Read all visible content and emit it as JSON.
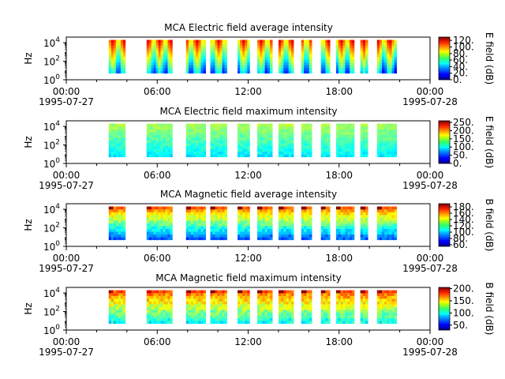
{
  "chart_data": [
    {
      "type": "heatmap",
      "title": "MCA  Electric field average intensity",
      "ylabel": "Hz",
      "y_scale": "log",
      "ylim": [
        1,
        40000
      ],
      "y_ticks": [
        {
          "exp": "0",
          "v": 1
        },
        {
          "exp": "2",
          "v": 100
        },
        {
          "exp": "4",
          "v": 10000
        }
      ],
      "xlim": [
        "1995-07-27 00:00",
        "1995-07-28 00:00"
      ],
      "x_ticks": [
        {
          "time": "00:00",
          "date": "1995-07-27"
        },
        {
          "time": "06:00",
          "date": ""
        },
        {
          "time": "12:00",
          "date": ""
        },
        {
          "time": "18:00",
          "date": ""
        },
        {
          "time": "00:00",
          "date": "1995-07-28"
        }
      ],
      "colorbar": {
        "label": "E field (dB)",
        "range": [
          0,
          130
        ],
        "ticks": [
          "0.",
          "20.",
          "40.",
          "60.",
          "80.",
          "100.",
          "120."
        ],
        "tick_values": [
          0,
          20,
          40,
          60,
          80,
          100,
          120
        ]
      },
      "data_intervals_hours": [
        [
          2.8,
          3.9
        ],
        [
          5.3,
          7.0
        ],
        [
          7.9,
          9.2
        ],
        [
          9.5,
          10.6
        ],
        [
          11.3,
          12.1
        ],
        [
          12.6,
          13.6
        ],
        [
          14.0,
          15.0
        ],
        [
          15.5,
          16.2
        ],
        [
          16.8,
          17.4
        ],
        [
          17.8,
          19.0
        ],
        [
          19.4,
          19.9
        ],
        [
          20.5,
          21.8
        ]
      ],
      "freq_range_hz": [
        5,
        20000
      ]
    },
    {
      "type": "heatmap",
      "title": "MCA  Electric field maximum intensity",
      "ylabel": "Hz",
      "y_scale": "log",
      "ylim": [
        1,
        40000
      ],
      "y_ticks": [
        {
          "exp": "0",
          "v": 1
        },
        {
          "exp": "2",
          "v": 100
        },
        {
          "exp": "4",
          "v": 10000
        }
      ],
      "xlim": [
        "1995-07-27 00:00",
        "1995-07-28 00:00"
      ],
      "x_ticks": [
        {
          "time": "00:00",
          "date": "1995-07-27"
        },
        {
          "time": "06:00",
          "date": ""
        },
        {
          "time": "12:00",
          "date": ""
        },
        {
          "time": "18:00",
          "date": ""
        },
        {
          "time": "00:00",
          "date": "1995-07-28"
        }
      ],
      "colorbar": {
        "label": "E field (dB)",
        "range": [
          0,
          260
        ],
        "ticks": [
          "0.",
          "50.",
          "100.",
          "150.",
          "200.",
          "250."
        ],
        "tick_values": [
          0,
          50,
          100,
          150,
          200,
          250
        ]
      },
      "data_intervals_hours": [
        [
          2.8,
          3.9
        ],
        [
          5.3,
          7.0
        ],
        [
          7.9,
          9.2
        ],
        [
          9.5,
          10.6
        ],
        [
          11.3,
          12.1
        ],
        [
          12.6,
          13.6
        ],
        [
          14.0,
          15.0
        ],
        [
          15.5,
          16.2
        ],
        [
          16.8,
          17.4
        ],
        [
          17.8,
          19.0
        ],
        [
          19.4,
          19.9
        ],
        [
          20.5,
          21.8
        ]
      ],
      "freq_range_hz": [
        5,
        20000
      ]
    },
    {
      "type": "heatmap",
      "title": "MCA  Magnetic field average intensity",
      "ylabel": "Hz",
      "y_scale": "log",
      "ylim": [
        1,
        40000
      ],
      "y_ticks": [
        {
          "exp": "0",
          "v": 1
        },
        {
          "exp": "2",
          "v": 100
        },
        {
          "exp": "4",
          "v": 10000
        }
      ],
      "xlim": [
        "1995-07-27 00:00",
        "1995-07-28 00:00"
      ],
      "x_ticks": [
        {
          "time": "00:00",
          "date": "1995-07-27"
        },
        {
          "time": "06:00",
          "date": ""
        },
        {
          "time": "12:00",
          "date": ""
        },
        {
          "time": "18:00",
          "date": ""
        },
        {
          "time": "00:00",
          "date": "1995-07-28"
        }
      ],
      "colorbar": {
        "label": "B field (dB)",
        "range": [
          55,
          190
        ],
        "ticks": [
          "60.",
          "80.",
          "100.",
          "120.",
          "140.",
          "160.",
          "180."
        ],
        "tick_values": [
          60,
          80,
          100,
          120,
          140,
          160,
          180
        ]
      },
      "data_intervals_hours": [
        [
          2.8,
          3.9
        ],
        [
          5.3,
          7.0
        ],
        [
          7.9,
          9.2
        ],
        [
          9.5,
          10.6
        ],
        [
          11.3,
          12.1
        ],
        [
          12.6,
          13.6
        ],
        [
          14.0,
          15.0
        ],
        [
          15.5,
          16.2
        ],
        [
          16.8,
          17.4
        ],
        [
          17.8,
          19.0
        ],
        [
          19.4,
          19.9
        ],
        [
          20.5,
          21.8
        ]
      ],
      "freq_range_hz": [
        5,
        20000
      ]
    },
    {
      "type": "heatmap",
      "title": "MCA  Magnetic field maximum intensity",
      "ylabel": "Hz",
      "y_scale": "log",
      "ylim": [
        1,
        40000
      ],
      "y_ticks": [
        {
          "exp": "0",
          "v": 1
        },
        {
          "exp": "2",
          "v": 100
        },
        {
          "exp": "4",
          "v": 10000
        }
      ],
      "xlim": [
        "1995-07-27 00:00",
        "1995-07-28 00:00"
      ],
      "x_ticks": [
        {
          "time": "00:00",
          "date": "1995-07-27"
        },
        {
          "time": "06:00",
          "date": ""
        },
        {
          "time": "12:00",
          "date": ""
        },
        {
          "time": "18:00",
          "date": ""
        },
        {
          "time": "00:00",
          "date": "1995-07-28"
        }
      ],
      "colorbar": {
        "label": "B field (dB)",
        "range": [
          30,
          205
        ],
        "ticks": [
          "50.",
          "100.",
          "150.",
          "200."
        ],
        "tick_values": [
          50,
          100,
          150,
          200
        ]
      },
      "data_intervals_hours": [
        [
          2.8,
          3.9
        ],
        [
          5.3,
          7.0
        ],
        [
          7.9,
          9.2
        ],
        [
          9.5,
          10.6
        ],
        [
          11.3,
          12.1
        ],
        [
          12.6,
          13.6
        ],
        [
          14.0,
          15.0
        ],
        [
          15.5,
          16.2
        ],
        [
          16.8,
          17.4
        ],
        [
          17.8,
          19.0
        ],
        [
          19.4,
          19.9
        ],
        [
          20.5,
          21.8
        ]
      ],
      "freq_range_hz": [
        5,
        20000
      ]
    }
  ]
}
